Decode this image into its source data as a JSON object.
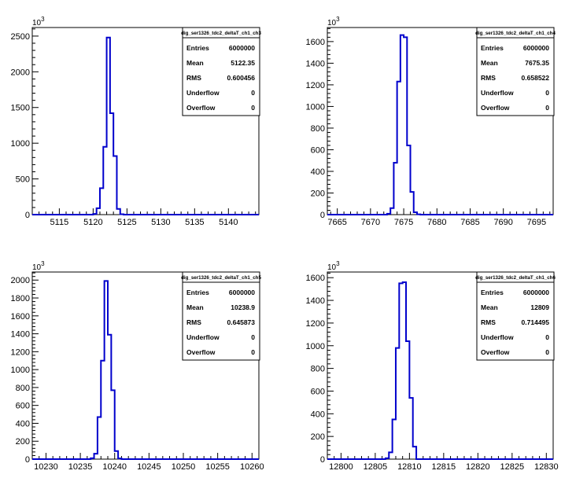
{
  "pads": [
    {
      "title": "dig_ser1326_tdc2_deltaT_ch1_ch3",
      "exponent_label": "10",
      "exponent_power": "3",
      "stats": [
        {
          "label": "Entries",
          "value": "6000000"
        },
        {
          "label": "Mean",
          "value": "5122.35"
        },
        {
          "label": "RMS",
          "value": "0.600456"
        },
        {
          "label": "Underflow",
          "value": "0"
        },
        {
          "label": "Overflow",
          "value": "0"
        }
      ],
      "x_ticks": [
        "5115",
        "5120",
        "5125",
        "5130",
        "5135",
        "5140"
      ],
      "y_ticks": [
        "0",
        "500",
        "1000",
        "1500",
        "2000",
        "2500"
      ]
    },
    {
      "title": "dig_ser1326_tdc2_deltaT_ch1_ch4",
      "exponent_label": "10",
      "exponent_power": "3",
      "stats": [
        {
          "label": "Entries",
          "value": "6000000"
        },
        {
          "label": "Mean",
          "value": "7675.35"
        },
        {
          "label": "RMS",
          "value": "0.658522"
        },
        {
          "label": "Underflow",
          "value": "0"
        },
        {
          "label": "Overflow",
          "value": "0"
        }
      ],
      "x_ticks": [
        "7665",
        "7670",
        "7675",
        "7680",
        "7685",
        "7690",
        "7695"
      ],
      "y_ticks": [
        "0",
        "200",
        "400",
        "600",
        "800",
        "1000",
        "1200",
        "1400",
        "1600"
      ]
    },
    {
      "title": "dig_ser1326_tdc2_deltaT_ch1_ch5",
      "exponent_label": "10",
      "exponent_power": "3",
      "stats": [
        {
          "label": "Entries",
          "value": "6000000"
        },
        {
          "label": "Mean",
          "value": "10238.9"
        },
        {
          "label": "RMS",
          "value": "0.645873"
        },
        {
          "label": "Underflow",
          "value": "0"
        },
        {
          "label": "Overflow",
          "value": "0"
        }
      ],
      "x_ticks": [
        "10230",
        "10235",
        "10240",
        "10245",
        "10250",
        "10255",
        "10260"
      ],
      "y_ticks": [
        "0",
        "200",
        "400",
        "600",
        "800",
        "1000",
        "1200",
        "1400",
        "1600",
        "1800",
        "2000"
      ]
    },
    {
      "title": "dig_ser1326_tdc2_deltaT_ch1_ch6",
      "exponent_label": "10",
      "exponent_power": "3",
      "stats": [
        {
          "label": "Entries",
          "value": "6000000"
        },
        {
          "label": "Mean",
          "value": "12809"
        },
        {
          "label": "RMS",
          "value": "0.714495"
        },
        {
          "label": "Underflow",
          "value": "0"
        },
        {
          "label": "Overflow",
          "value": "0"
        }
      ],
      "x_ticks": [
        "12800",
        "12805",
        "12810",
        "12815",
        "12820",
        "12825",
        "12830"
      ],
      "y_ticks": [
        "0",
        "200",
        "400",
        "600",
        "800",
        "1000",
        "1200",
        "1400",
        "1600"
      ]
    }
  ],
  "chart_data": [
    {
      "type": "histogram",
      "title": "dig_ser1326_tdc2_deltaT_ch1_ch3",
      "xlabel": "",
      "ylabel": "",
      "y_multiplier": "10^3",
      "xlim": [
        5111,
        5144.5
      ],
      "ylim": [
        0,
        2620
      ],
      "x_ticks": [
        5115,
        5120,
        5125,
        5130,
        5135,
        5140
      ],
      "y_ticks": [
        0,
        500,
        1000,
        1500,
        2000,
        2500
      ],
      "bin_edges": [
        5120.0,
        5120.5,
        5121.0,
        5121.5,
        5122.0,
        5122.5,
        5123.0,
        5123.5,
        5124.0,
        5124.5
      ],
      "values": [
        10,
        90,
        370,
        950,
        2480,
        1420,
        820,
        80,
        6
      ],
      "color": "#0000cc"
    },
    {
      "type": "histogram",
      "title": "dig_ser1326_tdc2_deltaT_ch1_ch4",
      "xlabel": "",
      "ylabel": "",
      "y_multiplier": "10^3",
      "xlim": [
        7663.5,
        7697.5
      ],
      "ylim": [
        0,
        1730
      ],
      "x_ticks": [
        7665,
        7670,
        7675,
        7680,
        7685,
        7690,
        7695
      ],
      "y_ticks": [
        0,
        200,
        400,
        600,
        800,
        1000,
        1200,
        1400,
        1600
      ],
      "bin_edges": [
        7672.5,
        7673.0,
        7673.5,
        7674.0,
        7674.5,
        7675.0,
        7675.5,
        7676.0,
        7676.5,
        7677.0,
        7677.5
      ],
      "values": [
        8,
        60,
        480,
        1230,
        1660,
        1640,
        640,
        210,
        22,
        3
      ],
      "color": "#0000cc"
    },
    {
      "type": "histogram",
      "title": "dig_ser1326_tdc2_deltaT_ch1_ch5",
      "xlabel": "",
      "ylabel": "",
      "y_multiplier": "10^3",
      "xlim": [
        10228,
        10261
      ],
      "ylim": [
        0,
        2090
      ],
      "x_ticks": [
        10230,
        10235,
        10240,
        10245,
        10250,
        10255,
        10260
      ],
      "y_ticks": [
        0,
        200,
        400,
        600,
        800,
        1000,
        1200,
        1400,
        1600,
        1800,
        2000
      ],
      "bin_edges": [
        10236.5,
        10237.0,
        10237.5,
        10238.0,
        10238.5,
        10239.0,
        10239.5,
        10240.0,
        10240.5,
        10241.0
      ],
      "values": [
        10,
        60,
        470,
        1100,
        1990,
        1390,
        770,
        90,
        8
      ],
      "color": "#0000cc"
    },
    {
      "type": "histogram",
      "title": "dig_ser1326_tdc2_deltaT_ch1_ch6",
      "xlabel": "",
      "ylabel": "",
      "y_multiplier": "10^3",
      "xlim": [
        12798,
        12831
      ],
      "ylim": [
        0,
        1650
      ],
      "x_ticks": [
        12800,
        12805,
        12810,
        12815,
        12820,
        12825,
        12830
      ],
      "y_ticks": [
        0,
        200,
        400,
        600,
        800,
        1000,
        1200,
        1400,
        1600
      ],
      "bin_edges": [
        12806.5,
        12807.0,
        12807.5,
        12808.0,
        12808.5,
        12809.0,
        12809.5,
        12810.0,
        12810.5,
        12811.0
      ],
      "values": [
        8,
        60,
        350,
        980,
        1550,
        1560,
        1040,
        540,
        110
      ],
      "color": "#0000cc"
    }
  ]
}
